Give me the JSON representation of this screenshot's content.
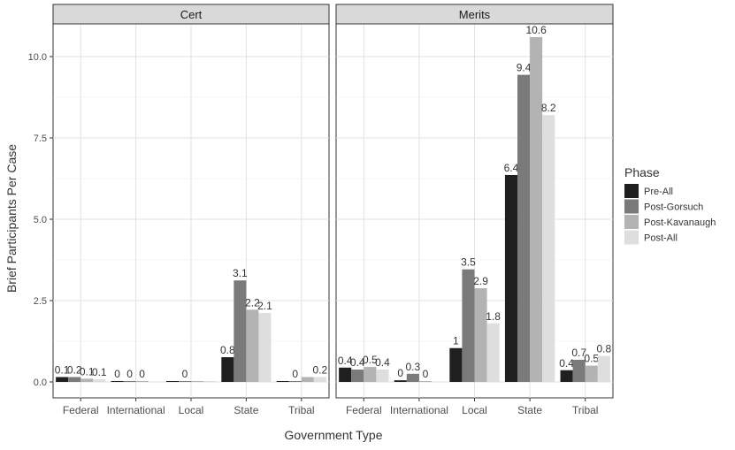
{
  "chart_data": {
    "type": "bar",
    "xlabel": "Government Type",
    "ylabel": "Brief Participants Per Case",
    "ylim": [
      0,
      11.2
    ],
    "yticks": [
      0.0,
      2.5,
      5.0,
      7.5,
      10.0
    ],
    "ytick_labels": [
      "0.0",
      "2.5",
      "5.0",
      "7.5",
      "10.0"
    ],
    "grid": true,
    "legend": {
      "title": "Phase",
      "position": "right"
    },
    "series_colors": [
      "#1f1f1f",
      "#7a7a7a",
      "#b3b3b3",
      "#dedede"
    ],
    "series_names": [
      "Pre-All",
      "Post-Gorsuch",
      "Post-Kavanaugh",
      "Post-All"
    ],
    "categories": [
      "Federal",
      "International",
      "Local",
      "State",
      "Tribal"
    ],
    "facets": [
      {
        "title": "Cert",
        "bars": [
          {
            "category": "Federal",
            "values": [
              0.15,
              0.15,
              0.1,
              0.08
            ],
            "labels": [
              "0.1",
              "0.2",
              "0.1",
              "0.1"
            ]
          },
          {
            "category": "International",
            "values": [
              0.02,
              0.02,
              0.02,
              null
            ],
            "labels": [
              "0",
              "0",
              "0",
              ""
            ]
          },
          {
            "category": "Local",
            "values": [
              0.02,
              0.02,
              0.02,
              0.02
            ],
            "labels": [
              "",
              "0",
              "",
              ""
            ]
          },
          {
            "category": "State",
            "values": [
              0.76,
              3.12,
              2.22,
              2.12
            ],
            "labels": [
              "0.8",
              "3.1",
              "2.2",
              "2.1"
            ]
          },
          {
            "category": "Tribal",
            "values": [
              0.02,
              0.02,
              0.15,
              0.15
            ],
            "labels": [
              "",
              "0",
              "",
              "0.2"
            ]
          }
        ]
      },
      {
        "title": "Merits",
        "bars": [
          {
            "category": "Federal",
            "values": [
              0.44,
              0.38,
              0.46,
              0.38
            ],
            "labels": [
              "0.4",
              "0.4",
              "0.5",
              "0.4"
            ]
          },
          {
            "category": "International",
            "values": [
              0.05,
              0.25,
              0.02,
              null
            ],
            "labels": [
              "0",
              "0.3",
              "0",
              ""
            ]
          },
          {
            "category": "Local",
            "values": [
              1.04,
              3.46,
              2.88,
              1.8
            ],
            "labels": [
              "1",
              "3.5",
              "2.9",
              "1.8"
            ]
          },
          {
            "category": "State",
            "values": [
              6.36,
              9.44,
              10.6,
              8.2
            ],
            "labels": [
              "6.4",
              "9.4",
              "10.6",
              "8.2"
            ]
          },
          {
            "category": "Tribal",
            "values": [
              0.36,
              0.68,
              0.5,
              0.8
            ],
            "labels": [
              "0.4",
              "0.7",
              "0.5",
              "0.8"
            ]
          }
        ]
      }
    ]
  }
}
